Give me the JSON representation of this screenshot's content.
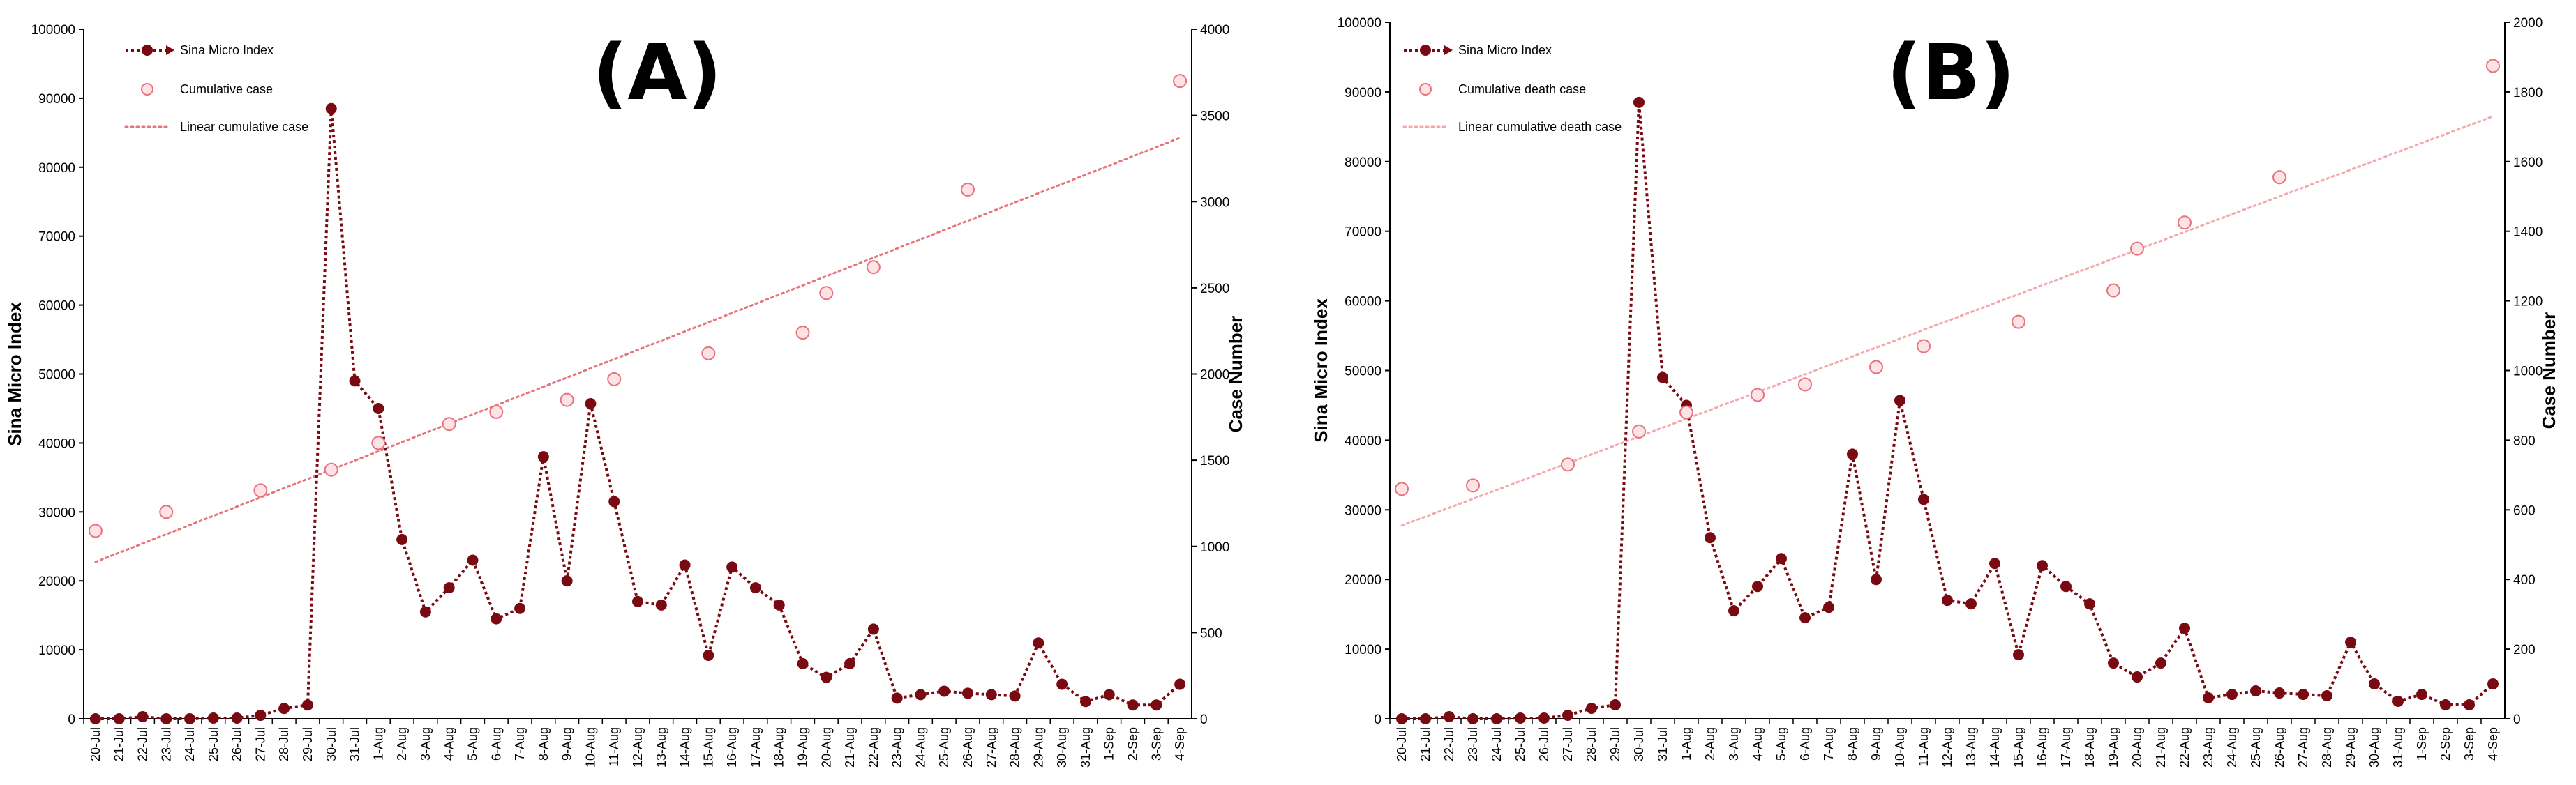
{
  "chart_data": [
    {
      "type": "line",
      "panel_label": "(A)",
      "ylabel_left": "Sina Micro Index",
      "ylabel_right": "Case Number",
      "yticks_left": [
        "0",
        "10000",
        "20000",
        "30000",
        "40000",
        "50000",
        "60000",
        "70000",
        "80000",
        "90000",
        "100000"
      ],
      "yticks_right": [
        "0",
        "500",
        "1000",
        "1500",
        "2000",
        "2500",
        "3000",
        "3500",
        "4000"
      ],
      "ylim_left": [
        0,
        100000
      ],
      "ylim_right": [
        0,
        4000
      ],
      "categories": [
        "20-Jul",
        "21-Jul",
        "22-Jul",
        "23-Jul",
        "24-Jul",
        "25-Jul",
        "26-Jul",
        "27-Jul",
        "28-Jul",
        "29-Jul",
        "30-Jul",
        "31-Jul",
        "1-Aug",
        "2-Aug",
        "3-Aug",
        "4-Aug",
        "5-Aug",
        "6-Aug",
        "7-Aug",
        "8-Aug",
        "9-Aug",
        "10-Aug",
        "11-Aug",
        "12-Aug",
        "13-Aug",
        "14-Aug",
        "15-Aug",
        "16-Aug",
        "17-Aug",
        "18-Aug",
        "19-Aug",
        "20-Aug",
        "21-Aug",
        "22-Aug",
        "23-Aug",
        "24-Aug",
        "25-Aug",
        "26-Aug",
        "27-Aug",
        "28-Aug",
        "29-Aug",
        "30-Aug",
        "31-Aug",
        "1-Sep",
        "2-Sep",
        "3-Sep",
        "4-Sep"
      ],
      "series": [
        {
          "name": "Sina Micro Index",
          "axis": "left",
          "color": "#7a0a12",
          "values": [
            0,
            0,
            300,
            0,
            0,
            100,
            100,
            500,
            1500,
            2000,
            88500,
            49000,
            45000,
            26000,
            15500,
            19000,
            23000,
            14500,
            16000,
            38000,
            20000,
            45700,
            31500,
            17000,
            16500,
            22300,
            9200,
            22000,
            19000,
            16500,
            8000,
            6000,
            8000,
            13000,
            3000,
            3500,
            4000,
            3700,
            3500,
            3300,
            11000,
            5000,
            2500,
            3500,
            2000,
            2000,
            5000
          ]
        },
        {
          "name": "Cumulative case",
          "axis": "right",
          "color": "#e8737b",
          "points": [
            [
              "20-Jul",
              1090
            ],
            [
              "23-Jul",
              1200
            ],
            [
              "27-Jul",
              1325
            ],
            [
              "30-Jul",
              1445
            ],
            [
              "1-Aug",
              1600
            ],
            [
              "4-Aug",
              1710
            ],
            [
              "6-Aug",
              1780
            ],
            [
              "9-Aug",
              1850
            ],
            [
              "11-Aug",
              1970
            ],
            [
              "15-Aug",
              2120
            ],
            [
              "19-Aug",
              2240
            ],
            [
              "20-Aug",
              2470
            ],
            [
              "22-Aug",
              2620
            ],
            [
              "26-Aug",
              3070
            ],
            [
              "4-Sep",
              3700
            ]
          ]
        },
        {
          "name": "Linear cumulative case",
          "axis": "right",
          "color": "#e8737b",
          "line": [
            [
              "20-Jul",
              910
            ],
            [
              "4-Sep",
              3370
            ]
          ]
        }
      ]
    },
    {
      "type": "line",
      "panel_label": "(B)",
      "ylabel_left": "Sina Micro Index",
      "ylabel_right": "Case Number",
      "yticks_left": [
        "0",
        "10000",
        "20000",
        "30000",
        "40000",
        "50000",
        "60000",
        "70000",
        "80000",
        "90000",
        "100000"
      ],
      "yticks_right": [
        "0",
        "200",
        "400",
        "600",
        "800",
        "1000",
        "1200",
        "1400",
        "1600",
        "1800",
        "2000"
      ],
      "ylim_left": [
        0,
        100000
      ],
      "ylim_right": [
        0,
        2000
      ],
      "categories": [
        "20-Jul",
        "21-Jul",
        "22-Jul",
        "23-Jul",
        "24-Jul",
        "25-Jul",
        "26-Jul",
        "27-Jul",
        "28-Jul",
        "29-Jul",
        "30-Jul",
        "31-Jul",
        "1-Aug",
        "2-Aug",
        "3-Aug",
        "4-Aug",
        "5-Aug",
        "6-Aug",
        "7-Aug",
        "8-Aug",
        "9-Aug",
        "10-Aug",
        "11-Aug",
        "12-Aug",
        "13-Aug",
        "14-Aug",
        "15-Aug",
        "16-Aug",
        "17-Aug",
        "18-Aug",
        "19-Aug",
        "20-Aug",
        "21-Aug",
        "22-Aug",
        "23-Aug",
        "24-Aug",
        "25-Aug",
        "26-Aug",
        "27-Aug",
        "28-Aug",
        "29-Aug",
        "30-Aug",
        "31-Aug",
        "1-Sep",
        "2-Sep",
        "3-Sep",
        "4-Sep"
      ],
      "series": [
        {
          "name": "Sina Micro Index",
          "axis": "left",
          "color": "#7a0a12",
          "values": [
            0,
            0,
            300,
            0,
            0,
            100,
            100,
            500,
            1500,
            2000,
            88500,
            49000,
            45000,
            26000,
            15500,
            19000,
            23000,
            14500,
            16000,
            38000,
            20000,
            45700,
            31500,
            17000,
            16500,
            22300,
            9200,
            22000,
            19000,
            16500,
            8000,
            6000,
            8000,
            13000,
            3000,
            3500,
            4000,
            3700,
            3500,
            3300,
            11000,
            5000,
            2500,
            3500,
            2000,
            2000,
            5000
          ]
        },
        {
          "name": "Cumulative death case",
          "axis": "right",
          "color": "#e8737b",
          "points": [
            [
              "20-Jul",
              660
            ],
            [
              "23-Jul",
              670
            ],
            [
              "27-Jul",
              730
            ],
            [
              "30-Jul",
              825
            ],
            [
              "1-Aug",
              880
            ],
            [
              "4-Aug",
              930
            ],
            [
              "6-Aug",
              960
            ],
            [
              "9-Aug",
              1010
            ],
            [
              "11-Aug",
              1070
            ],
            [
              "15-Aug",
              1140
            ],
            [
              "19-Aug",
              1230
            ],
            [
              "20-Aug",
              1350
            ],
            [
              "22-Aug",
              1425
            ],
            [
              "26-Aug",
              1555
            ],
            [
              "4-Sep",
              1875
            ]
          ]
        },
        {
          "name": "Linear cumulative death case",
          "axis": "right",
          "color": "#f2a9ae",
          "line": [
            [
              "20-Jul",
              555
            ],
            [
              "4-Sep",
              1730
            ]
          ]
        }
      ]
    }
  ]
}
